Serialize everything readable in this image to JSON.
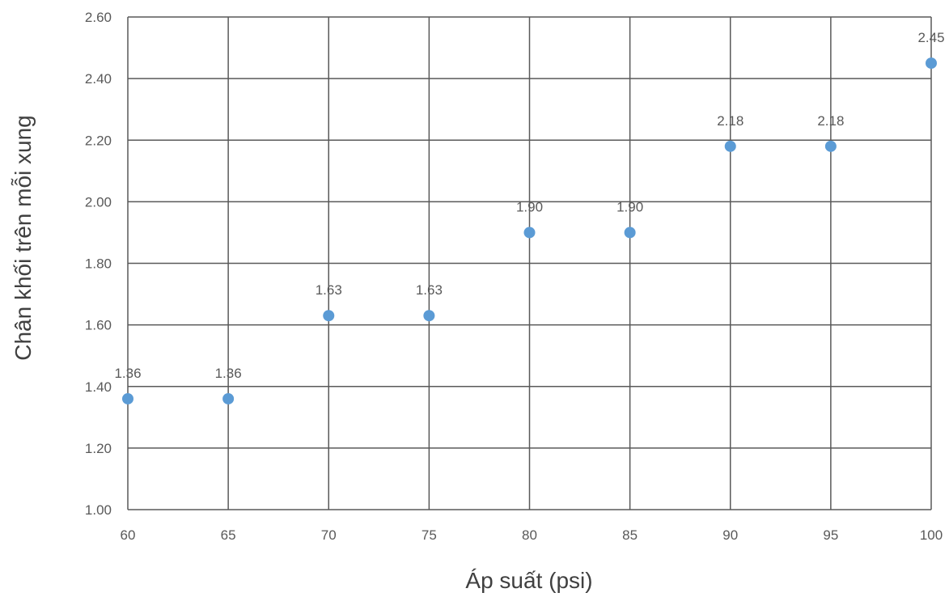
{
  "chart_data": {
    "type": "scatter",
    "title": "",
    "xlabel": "Áp suất (psi)",
    "ylabel": "Chân khối trên mỗi xung",
    "xlim": [
      60,
      100
    ],
    "ylim": [
      1.0,
      2.6
    ],
    "x_ticks": [
      "60",
      "65",
      "70",
      "75",
      "80",
      "85",
      "90",
      "95",
      "100"
    ],
    "y_ticks": [
      "1.00",
      "1.20",
      "1.40",
      "1.60",
      "1.80",
      "2.00",
      "2.20",
      "2.40",
      "2.60"
    ],
    "grid": true,
    "legend": "none",
    "series": [
      {
        "color": "#5B9BD5",
        "points": [
          {
            "x": 60,
            "y": 1.36,
            "label": "1.36"
          },
          {
            "x": 65,
            "y": 1.36,
            "label": "1.36"
          },
          {
            "x": 70,
            "y": 1.63,
            "label": "1.63"
          },
          {
            "x": 75,
            "y": 1.63,
            "label": "1.63"
          },
          {
            "x": 80,
            "y": 1.9,
            "label": "1.90"
          },
          {
            "x": 85,
            "y": 1.9,
            "label": "1.90"
          },
          {
            "x": 90,
            "y": 2.18,
            "label": "2.18"
          },
          {
            "x": 95,
            "y": 2.18,
            "label": "2.18"
          },
          {
            "x": 100,
            "y": 2.45,
            "label": "2.45"
          }
        ]
      }
    ]
  }
}
